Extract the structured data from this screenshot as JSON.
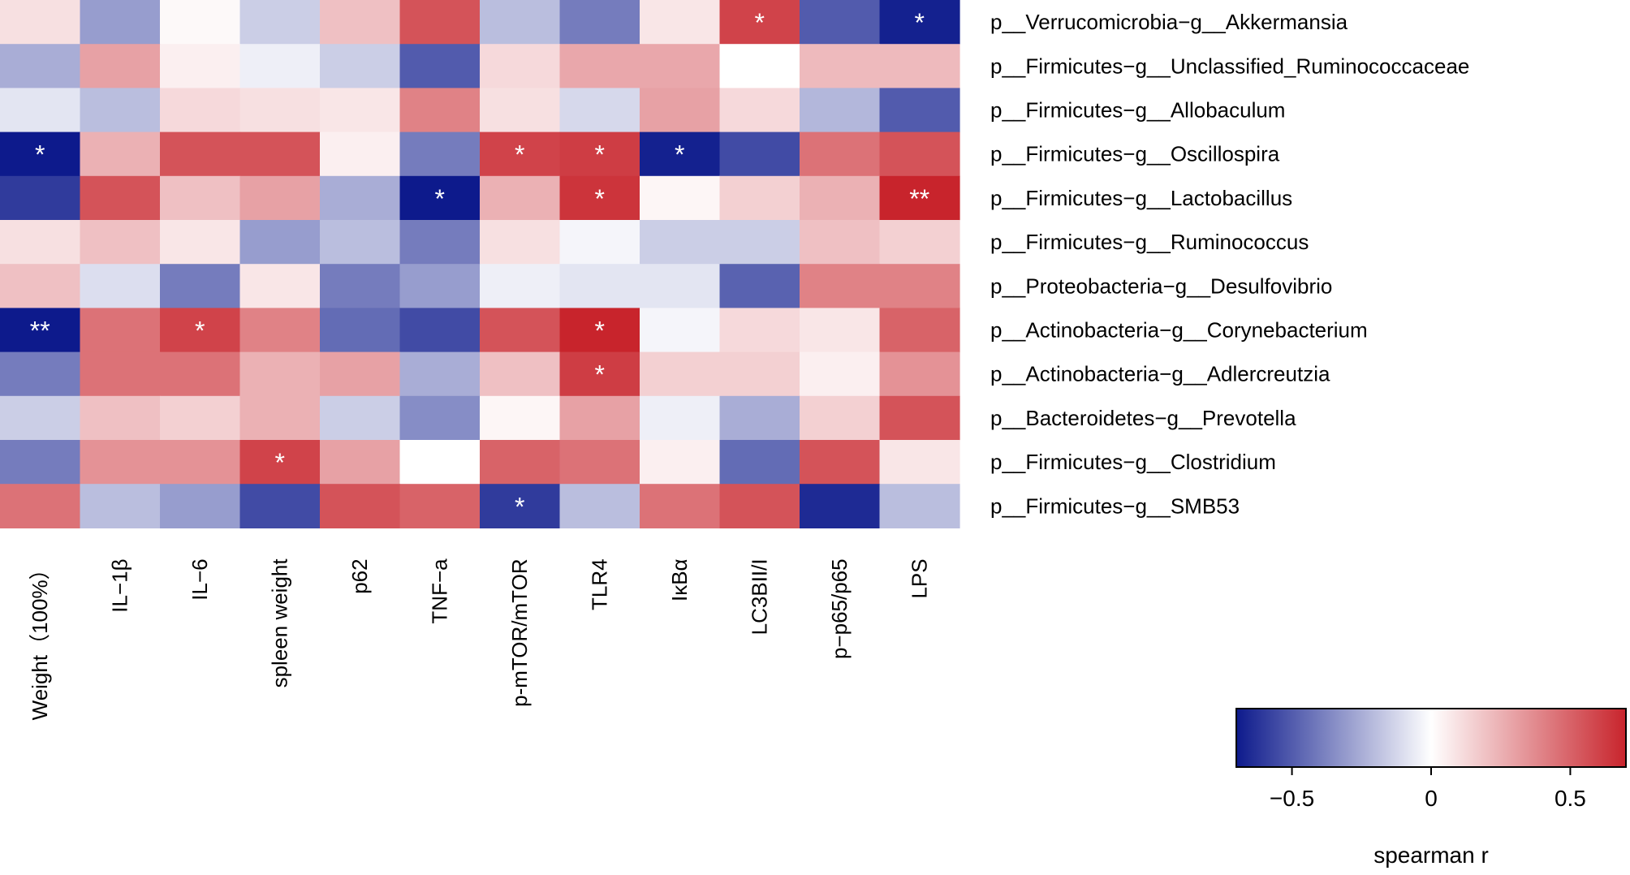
{
  "chart_data": {
    "type": "heatmap",
    "title": "",
    "xlabel": "",
    "ylabel": "",
    "columns": [
      "Weight（100%）",
      "IL−1β",
      "IL−6",
      "spleen weight",
      "p62",
      "TNF−a",
      "p-mTOR/mTOR",
      "TLR4",
      "IκBα",
      "LC3BII/I",
      "p−p65/p65",
      "LPS"
    ],
    "rows": [
      "p__Verrucomicrobia−g__Akkermansia",
      "p__Firmicutes−g__Unclassified_Ruminococcaceae",
      "p__Firmicutes−g__Allobaculum",
      "p__Firmicutes−g__Oscillospira",
      "p__Firmicutes−g__Lactobacillus",
      "p__Firmicutes−g__Ruminococcus",
      "p__Proteobacteria−g__Desulfovibrio",
      "p__Actinobacteria−g__Corynebacterium",
      "p__Actinobacteria−g__Adlercreutzia",
      "p__Bacteroidetes−g__Prevotella",
      "p__Firmicutes−g__Clostridium",
      "p__Firmicutes−g__SMB53"
    ],
    "values": [
      [
        0.1,
        -0.3,
        0.02,
        -0.15,
        0.2,
        0.55,
        -0.2,
        -0.4,
        0.08,
        0.6,
        -0.5,
        -0.68
      ],
      [
        -0.25,
        0.3,
        0.05,
        -0.05,
        -0.15,
        -0.5,
        0.12,
        0.28,
        0.28,
        0.0,
        0.22,
        0.22
      ],
      [
        -0.08,
        -0.2,
        0.12,
        0.1,
        0.08,
        0.4,
        0.1,
        -0.12,
        0.3,
        0.12,
        -0.22,
        -0.5
      ],
      [
        -0.7,
        0.25,
        0.55,
        0.55,
        0.05,
        -0.4,
        0.6,
        0.62,
        -0.68,
        -0.55,
        0.45,
        0.55
      ],
      [
        -0.6,
        0.55,
        0.2,
        0.3,
        -0.25,
        -0.75,
        0.25,
        0.65,
        0.03,
        0.15,
        0.25,
        0.72
      ],
      [
        0.1,
        0.2,
        0.08,
        -0.3,
        -0.2,
        -0.4,
        0.1,
        -0.03,
        -0.15,
        -0.15,
        0.2,
        0.15
      ],
      [
        0.2,
        -0.1,
        -0.4,
        0.08,
        -0.4,
        -0.3,
        -0.05,
        -0.08,
        -0.08,
        -0.48,
        0.4,
        0.4
      ],
      [
        -0.8,
        0.45,
        0.6,
        0.4,
        -0.45,
        -0.55,
        0.55,
        0.7,
        -0.03,
        0.12,
        0.08,
        0.5
      ],
      [
        -0.4,
        0.45,
        0.45,
        0.25,
        0.3,
        -0.25,
        0.2,
        0.62,
        0.15,
        0.15,
        0.05,
        0.35
      ],
      [
        -0.15,
        0.2,
        0.15,
        0.25,
        -0.15,
        -0.35,
        0.03,
        0.3,
        -0.05,
        -0.25,
        0.15,
        0.55
      ],
      [
        -0.4,
        0.35,
        0.35,
        0.6,
        0.3,
        0.0,
        0.5,
        0.45,
        0.05,
        -0.45,
        0.55,
        0.08
      ],
      [
        0.45,
        -0.2,
        -0.3,
        -0.55,
        0.55,
        0.5,
        -0.6,
        -0.2,
        0.45,
        0.55,
        -0.65,
        -0.2
      ]
    ],
    "significance": [
      [
        "",
        "",
        "",
        "",
        "",
        "",
        "",
        "",
        "",
        "*",
        "",
        "*"
      ],
      [
        "",
        "",
        "",
        "",
        "",
        "",
        "",
        "",
        "",
        "",
        "",
        ""
      ],
      [
        "",
        "",
        "",
        "",
        "",
        "",
        "",
        "",
        "",
        "",
        "",
        ""
      ],
      [
        "*",
        "",
        "",
        "",
        "",
        "",
        "*",
        "*",
        "*",
        "",
        "",
        ""
      ],
      [
        "",
        "",
        "",
        "",
        "",
        "*",
        "",
        "*",
        "",
        "",
        "",
        "**"
      ],
      [
        "",
        "",
        "",
        "",
        "",
        "",
        "",
        "",
        "",
        "",
        "",
        ""
      ],
      [
        "",
        "",
        "",
        "",
        "",
        "",
        "",
        "",
        "",
        "",
        "",
        ""
      ],
      [
        "**",
        "",
        "*",
        "",
        "",
        "",
        "",
        "*",
        "",
        "",
        "",
        ""
      ],
      [
        "",
        "",
        "",
        "",
        "",
        "",
        "",
        "*",
        "",
        "",
        "",
        ""
      ],
      [
        "",
        "",
        "",
        "",
        "",
        "",
        "",
        "",
        "",
        "",
        "",
        ""
      ],
      [
        "",
        "",
        "",
        "*",
        "",
        "",
        "",
        "",
        "",
        "",
        "",
        ""
      ],
      [
        "",
        "",
        "",
        "",
        "",
        "",
        "*",
        "",
        "",
        "",
        "",
        ""
      ]
    ],
    "colorbar": {
      "label": "spearman r",
      "range": [
        -0.7,
        0.7
      ],
      "ticks": [
        -0.5,
        0,
        0.5
      ],
      "tick_labels": [
        "−0.5",
        "0",
        "0.5"
      ],
      "low_color": "#0d1a8c",
      "mid_color": "#ffffff",
      "high_color": "#c8242c"
    }
  }
}
